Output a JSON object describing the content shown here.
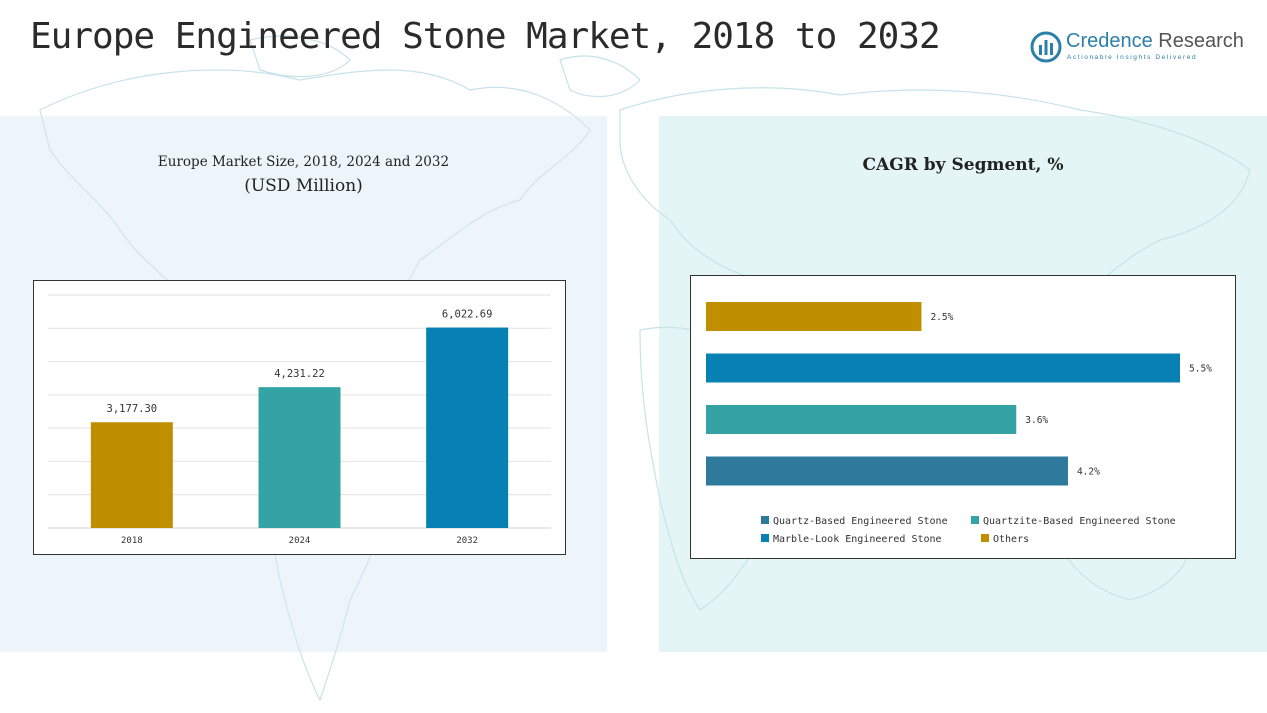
{
  "page_title": "Europe Engineered Stone Market, 2018 to 2032",
  "logo": {
    "name_part1": "Credence",
    "name_part2": " Research",
    "tagline": "Actionable Insights Delivered",
    "icon": "bar-chart-circle-icon",
    "color": "#2b7fa8"
  },
  "chart_data": [
    {
      "type": "bar",
      "title": "Europe Market Size, 2018, 2024 and 2032",
      "subtitle": "(USD Million)",
      "categories": [
        "2018",
        "2024",
        "2032"
      ],
      "values": [
        3177.3,
        4231.22,
        6022.69
      ],
      "value_labels": [
        "3,177.30",
        "4,231.22",
        "6,022.69"
      ],
      "colors": [
        "#c08f00",
        "#33a3a3",
        "#0780b4"
      ],
      "ylim": [
        0,
        7000
      ],
      "grid": true
    },
    {
      "type": "bar",
      "orientation": "horizontal",
      "title": "CAGR by Segment, %",
      "categories": [
        "Others",
        "Marble-Look Engineered Stone",
        "Quartzite-Based Engineered Stone",
        "Quartz-Based Engineered Stone"
      ],
      "values": [
        2.5,
        5.5,
        3.6,
        4.2
      ],
      "value_labels": [
        "2.5%",
        "5.5%",
        "3.6%",
        "4.2%"
      ],
      "colors": [
        "#c08f00",
        "#0780b4",
        "#33a3a3",
        "#2e7a9c"
      ],
      "xlim": [
        0,
        5.5
      ],
      "legend_position": "bottom",
      "legend": [
        {
          "label": "Quartz-Based Engineered Stone",
          "color": "#2e7a9c"
        },
        {
          "label": "Quartzite-Based Engineered Stone",
          "color": "#33a3a3"
        },
        {
          "label": "Marble-Look Engineered Stone",
          "color": "#0780b4"
        },
        {
          "label": "Others",
          "color": "#c08f00"
        }
      ]
    }
  ]
}
